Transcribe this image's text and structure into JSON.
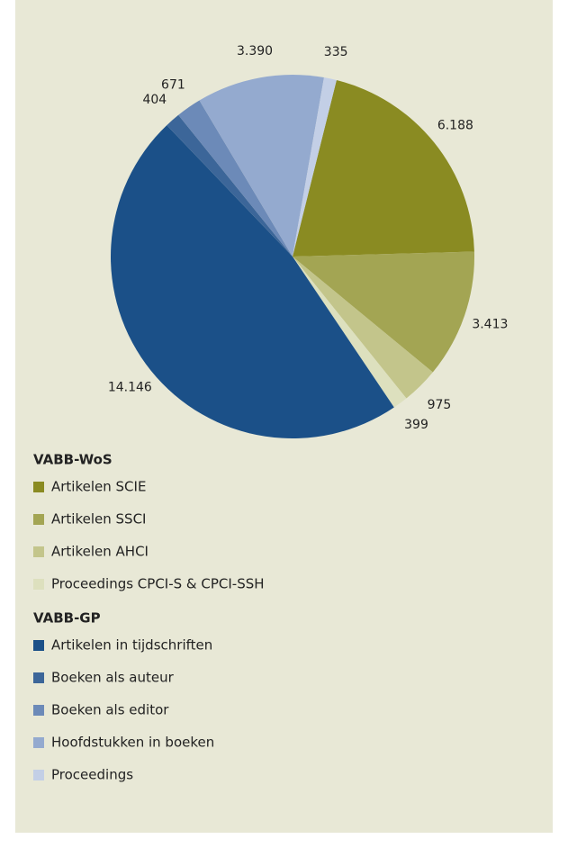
{
  "chart_data": {
    "type": "pie",
    "groups": [
      {
        "name": "VABB-WoS",
        "categories": [
          "Artikelen SCIE",
          "Artikelen SSCI",
          "Artikelen AHCI",
          "Proceedings CPCI-S & CPCI-SSH"
        ],
        "values": [
          6188,
          3413,
          975,
          399
        ],
        "value_labels": [
          "6.188",
          "3.413",
          "975",
          "399"
        ],
        "colors": [
          "#8a8b22",
          "#a3a553",
          "#c3c58b",
          "#dde0be"
        ]
      },
      {
        "name": "VABB-GP",
        "categories": [
          "Artikelen in tijdschriften",
          "Boeken als auteur",
          "Boeken als editor",
          "Hoofdstukken in boeken",
          "Proceedings"
        ],
        "values": [
          14146,
          404,
          671,
          3390,
          335
        ],
        "value_labels": [
          "14.146",
          "404",
          "671",
          "3.390",
          "335"
        ],
        "colors": [
          "#1b5088",
          "#3c6699",
          "#6c8ab8",
          "#94aacf",
          "#c3cfe6"
        ]
      }
    ]
  }
}
